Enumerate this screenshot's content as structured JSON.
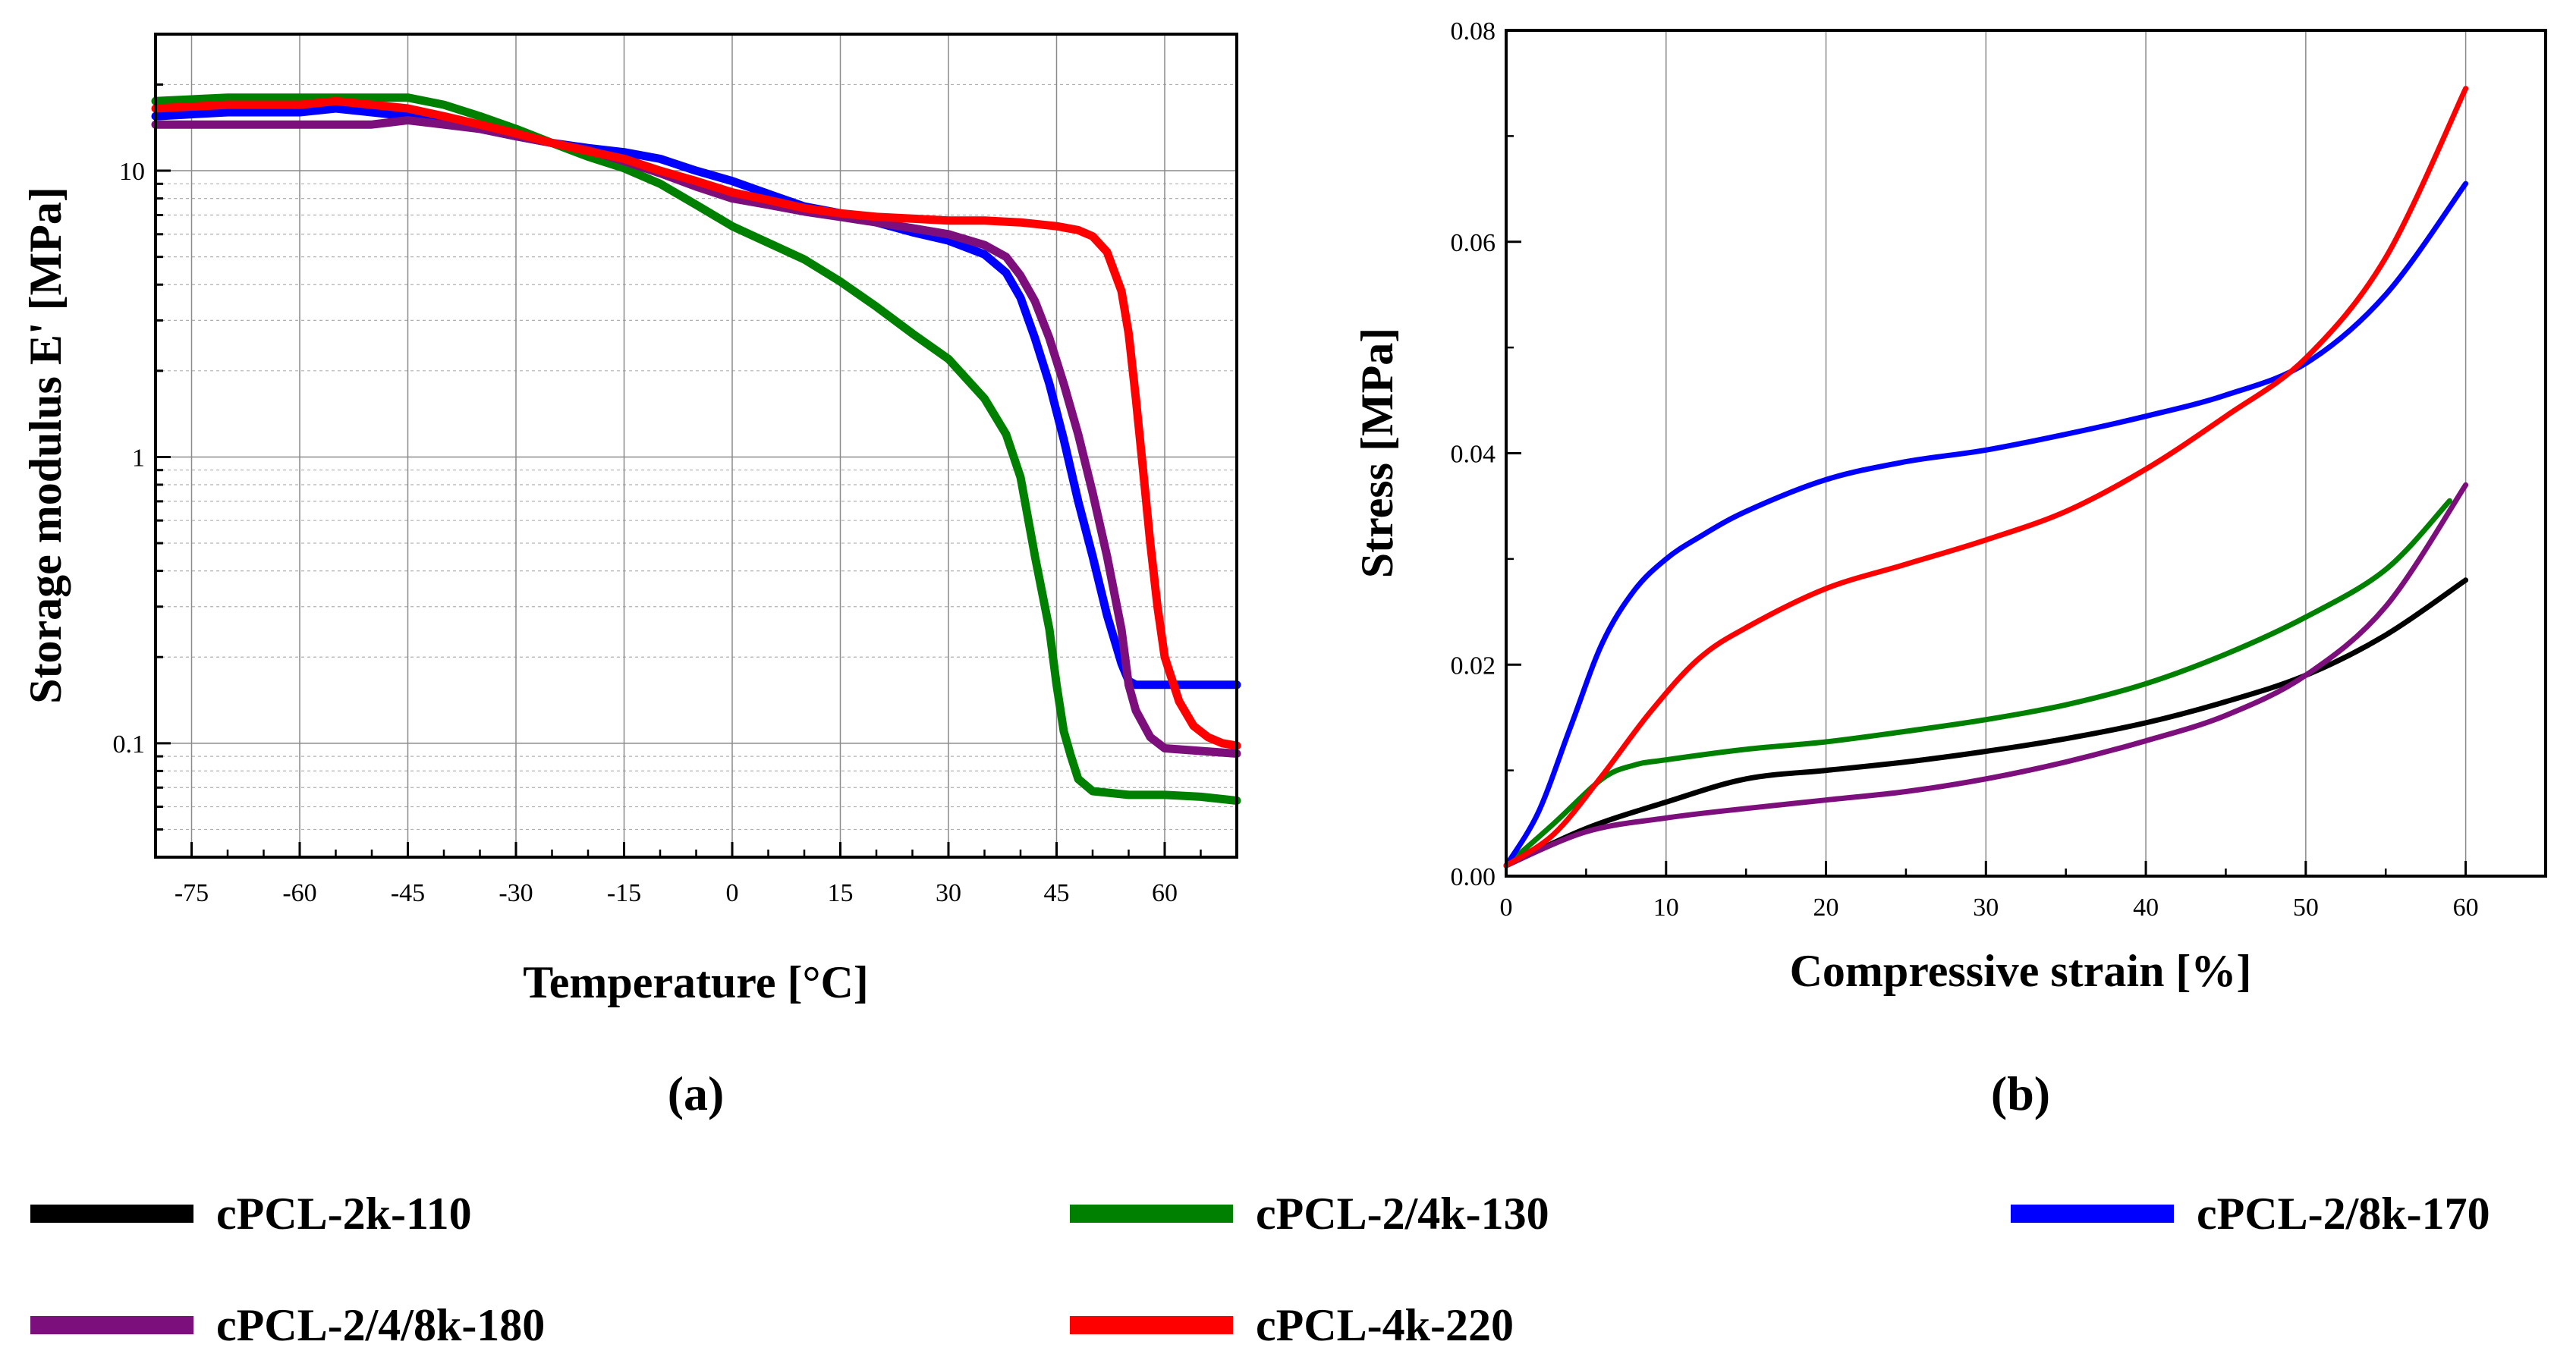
{
  "chart_data": [
    {
      "panel": "(a)",
      "type": "line",
      "xlabel": "Temperature [°C]",
      "ylabel": "Storage modulus E' [MPa]",
      "yscale": "log",
      "xlim": [
        -80,
        70
      ],
      "ylim": [
        0.04,
        30
      ],
      "xticks": [
        -75,
        -60,
        -45,
        -30,
        -15,
        0,
        15,
        30,
        45,
        60
      ],
      "yticks": [
        0.1,
        1,
        10
      ],
      "ytick_labels": [
        "0.1",
        "1",
        "10"
      ],
      "grid": true,
      "series": [
        {
          "name": "cPCL-2/4k-130",
          "color": "#008000",
          "x": [
            -80,
            -70,
            -60,
            -50,
            -45,
            -40,
            -35,
            -30,
            -25,
            -20,
            -15,
            -10,
            -5,
            0,
            5,
            10,
            15,
            20,
            25,
            30,
            35,
            38,
            40,
            42,
            44,
            45,
            46,
            47,
            48,
            50,
            55,
            60,
            65,
            70
          ],
          "y": [
            17.5,
            18,
            18,
            18,
            18,
            17,
            15.5,
            14,
            12.5,
            11.2,
            10.2,
            9,
            7.6,
            6.4,
            5.6,
            4.9,
            4.1,
            3.35,
            2.7,
            2.2,
            1.6,
            1.2,
            0.85,
            0.45,
            0.25,
            0.16,
            0.11,
            0.09,
            0.075,
            0.068,
            0.066,
            0.066,
            0.065,
            0.063
          ]
        },
        {
          "name": "cPCL-2/8k-170",
          "color": "#0000ff",
          "x": [
            -80,
            -70,
            -60,
            -55,
            -50,
            -45,
            -40,
            -35,
            -30,
            -25,
            -20,
            -15,
            -10,
            -5,
            0,
            5,
            10,
            15,
            20,
            25,
            30,
            35,
            38,
            40,
            42,
            44,
            46,
            48,
            50,
            52,
            54,
            55,
            56,
            60,
            65,
            70
          ],
          "y": [
            15.5,
            16,
            16,
            16.5,
            16,
            15.5,
            14.8,
            14,
            13.2,
            12.5,
            12,
            11.6,
            11,
            10,
            9.2,
            8.3,
            7.5,
            7.1,
            6.6,
            6.1,
            5.7,
            5.1,
            4.4,
            3.6,
            2.6,
            1.8,
            1.15,
            0.7,
            0.45,
            0.28,
            0.19,
            0.165,
            0.16,
            0.16,
            0.16,
            0.16
          ]
        },
        {
          "name": "cPCL-2/4/8k-180",
          "color": "#7d0f7d",
          "x": [
            -80,
            -70,
            -60,
            -50,
            -45,
            -40,
            -35,
            -30,
            -25,
            -20,
            -15,
            -10,
            -5,
            0,
            5,
            10,
            15,
            20,
            25,
            30,
            35,
            38,
            40,
            42,
            44,
            46,
            48,
            50,
            52,
            54,
            55,
            56,
            58,
            60,
            65,
            70
          ],
          "y": [
            14.5,
            14.5,
            14.5,
            14.5,
            15,
            14.5,
            14,
            13.2,
            12.5,
            11.8,
            10.8,
            9.8,
            8.8,
            8.0,
            7.6,
            7.2,
            6.9,
            6.6,
            6.3,
            6.0,
            5.5,
            5.0,
            4.3,
            3.5,
            2.6,
            1.8,
            1.2,
            0.75,
            0.45,
            0.25,
            0.16,
            0.13,
            0.105,
            0.096,
            0.094,
            0.092
          ]
        },
        {
          "name": "cPCL-4k-220",
          "color": "#ff0000",
          "x": [
            -80,
            -70,
            -60,
            -55,
            -50,
            -45,
            -40,
            -35,
            -30,
            -25,
            -20,
            -15,
            -10,
            -5,
            0,
            5,
            10,
            15,
            20,
            25,
            30,
            35,
            40,
            45,
            48,
            50,
            52,
            54,
            55,
            56,
            57,
            58,
            59,
            60,
            62,
            64,
            66,
            68,
            70
          ],
          "y": [
            16.5,
            17,
            17,
            17.5,
            17,
            16.5,
            15.5,
            14.5,
            13.5,
            12.5,
            11.7,
            11,
            10,
            9.2,
            8.4,
            7.9,
            7.4,
            7.1,
            6.9,
            6.8,
            6.7,
            6.7,
            6.6,
            6.4,
            6.2,
            5.9,
            5.2,
            3.8,
            2.7,
            1.6,
            0.9,
            0.5,
            0.3,
            0.2,
            0.14,
            0.115,
            0.105,
            0.1,
            0.098
          ]
        }
      ]
    },
    {
      "panel": "(b)",
      "type": "line",
      "xlabel": "Compressive strain [%]",
      "ylabel": "Stress [MPa]",
      "xlim": [
        0,
        65
      ],
      "ylim": [
        0,
        0.08
      ],
      "xticks": [
        0,
        10,
        20,
        30,
        40,
        50,
        60
      ],
      "yticks": [
        0.0,
        0.02,
        0.04,
        0.06,
        0.08
      ],
      "ytick_labels": [
        "0.00",
        "0.02",
        "0.04",
        "0.06",
        "0.08"
      ],
      "grid": true,
      "series": [
        {
          "name": "cPCL-2k-110",
          "color": "#000000",
          "x": [
            0,
            5,
            10,
            15,
            20,
            25,
            30,
            35,
            40,
            45,
            50,
            55,
            60
          ],
          "y": [
            0.001,
            0.0045,
            0.007,
            0.0092,
            0.01,
            0.0108,
            0.0118,
            0.013,
            0.0145,
            0.0165,
            0.019,
            0.0228,
            0.028
          ]
        },
        {
          "name": "cPCL-2/4k-130",
          "color": "#008000",
          "x": [
            0,
            3,
            6,
            8,
            10,
            15,
            20,
            25,
            30,
            35,
            40,
            45,
            50,
            55,
            59
          ],
          "y": [
            0.001,
            0.005,
            0.0092,
            0.0105,
            0.011,
            0.012,
            0.0127,
            0.0137,
            0.0148,
            0.0162,
            0.0182,
            0.021,
            0.0245,
            0.029,
            0.0355
          ]
        },
        {
          "name": "cPCL-2/8k-170",
          "color": "#0000ff",
          "x": [
            0,
            2,
            4,
            6,
            8,
            10,
            12,
            15,
            20,
            25,
            30,
            35,
            40,
            45,
            50,
            55,
            60
          ],
          "y": [
            0.001,
            0.006,
            0.014,
            0.022,
            0.027,
            0.03,
            0.032,
            0.0345,
            0.0375,
            0.0392,
            0.0403,
            0.0418,
            0.0435,
            0.0455,
            0.0485,
            0.055,
            0.0655
          ]
        },
        {
          "name": "cPCL-2/4/8k-180",
          "color": "#7d0f7d",
          "x": [
            0,
            5,
            10,
            15,
            20,
            25,
            30,
            35,
            40,
            45,
            50,
            55,
            60
          ],
          "y": [
            0.001,
            0.0042,
            0.0055,
            0.0064,
            0.0072,
            0.008,
            0.0092,
            0.0108,
            0.0128,
            0.0152,
            0.019,
            0.0255,
            0.037
          ]
        },
        {
          "name": "cPCL-4k-220",
          "color": "#ff0000",
          "x": [
            0,
            3,
            6,
            9,
            12,
            15,
            20,
            25,
            30,
            35,
            40,
            45,
            50,
            55,
            60
          ],
          "y": [
            0.001,
            0.004,
            0.0095,
            0.0155,
            0.0205,
            0.0235,
            0.0272,
            0.0295,
            0.0318,
            0.0345,
            0.0385,
            0.0435,
            0.049,
            0.0585,
            0.0745
          ]
        }
      ]
    }
  ],
  "legend": [
    {
      "label": "cPCL-2k-110",
      "color": "#000000"
    },
    {
      "label": "cPCL-2/4k-130",
      "color": "#008000"
    },
    {
      "label": "cPCL-2/8k-170",
      "color": "#0000ff"
    },
    {
      "label": "cPCL-2/4/8k-180",
      "color": "#7d0f7d"
    },
    {
      "label": "cPCL-4k-220",
      "color": "#ff0000"
    }
  ]
}
